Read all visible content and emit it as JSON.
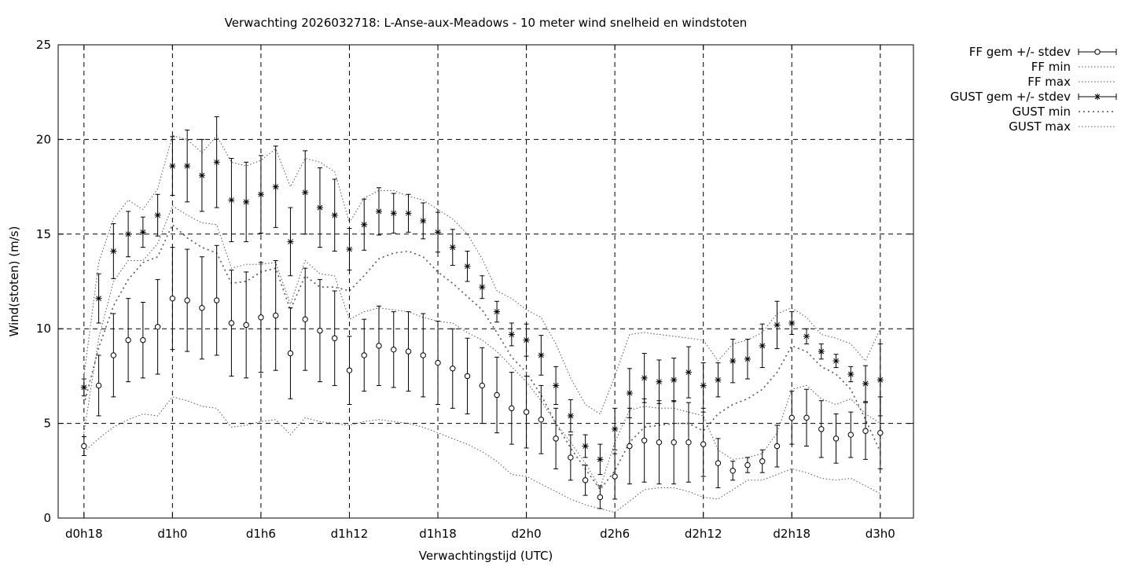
{
  "chart_data": {
    "type": "line",
    "title": "Verwachting 2026032718: L-Anse-aux-Meadows - 10 meter wind snelheid en windstoten",
    "xlabel": "Verwachtingstijd (UTC)",
    "ylabel": "Wind(stoten) (m/s)",
    "x_unit": "hours",
    "xlim": [
      -1.75,
      56.25
    ],
    "ylim": [
      0,
      25
    ],
    "yticks": [
      0,
      5,
      10,
      15,
      20,
      25
    ],
    "xticks": [
      {
        "x": 0,
        "label": "d0h18"
      },
      {
        "x": 6,
        "label": "d1h0"
      },
      {
        "x": 12,
        "label": "d1h6"
      },
      {
        "x": 18,
        "label": "d1h12"
      },
      {
        "x": 24,
        "label": "d1h18"
      },
      {
        "x": 30,
        "label": "d2h0"
      },
      {
        "x": 36,
        "label": "d2h6"
      },
      {
        "x": 42,
        "label": "d2h12"
      },
      {
        "x": 48,
        "label": "d2h18"
      },
      {
        "x": 54,
        "label": "d3h0"
      }
    ],
    "grid": true,
    "legend_position": "outside-right",
    "x": [
      0,
      1,
      2,
      3,
      4,
      5,
      6,
      7,
      8,
      9,
      10,
      11,
      12,
      13,
      14,
      15,
      16,
      17,
      18,
      19,
      20,
      21,
      22,
      23,
      24,
      25,
      26,
      27,
      28,
      29,
      30,
      31,
      32,
      33,
      34,
      35,
      36,
      37,
      38,
      39,
      40,
      41,
      42,
      43,
      44,
      45,
      46,
      47,
      48,
      49,
      50,
      51,
      52,
      53,
      54
    ],
    "series": [
      {
        "name": "FF gem +/- stdev",
        "kind": "errorbars",
        "marker": "circle",
        "values": [
          3.8,
          7.0,
          8.6,
          9.4,
          9.4,
          10.1,
          11.6,
          11.5,
          11.1,
          11.5,
          10.3,
          10.2,
          10.6,
          10.7,
          8.7,
          10.5,
          9.9,
          9.5,
          7.8,
          8.6,
          9.1,
          8.9,
          8.8,
          8.6,
          8.2,
          7.9,
          7.5,
          7.0,
          6.5,
          5.8,
          5.6,
          5.2,
          4.2,
          3.2,
          2.0,
          1.1,
          2.2,
          3.8,
          4.1,
          4.0,
          4.0,
          4.0,
          3.9,
          2.9,
          2.5,
          2.8,
          3.0,
          3.8,
          5.3,
          5.3,
          4.7,
          4.2,
          4.4,
          4.6,
          4.5
        ],
        "err": [
          0.5,
          1.6,
          2.2,
          2.2,
          2.0,
          2.5,
          2.7,
          2.7,
          2.7,
          2.9,
          2.8,
          2.8,
          2.9,
          2.9,
          2.4,
          2.7,
          2.7,
          2.5,
          1.8,
          1.9,
          2.1,
          2.0,
          2.1,
          2.2,
          2.2,
          2.1,
          2.0,
          2.0,
          2.0,
          1.9,
          1.9,
          1.8,
          1.6,
          1.2,
          0.8,
          0.6,
          1.2,
          2.0,
          2.2,
          2.2,
          2.2,
          2.1,
          1.7,
          1.3,
          0.5,
          0.4,
          0.6,
          1.1,
          1.4,
          1.5,
          1.5,
          1.3,
          1.2,
          1.5,
          1.9
        ]
      },
      {
        "name": "FF min",
        "kind": "dotted",
        "values": [
          3.5,
          4.2,
          4.8,
          5.2,
          5.5,
          5.4,
          6.4,
          6.2,
          5.9,
          5.8,
          4.8,
          4.9,
          5.1,
          5.2,
          4.4,
          5.3,
          5.1,
          5.0,
          4.9,
          5.1,
          5.2,
          5.1,
          5.0,
          4.8,
          4.5,
          4.2,
          3.9,
          3.5,
          3.0,
          2.3,
          2.2,
          1.8,
          1.4,
          1.0,
          0.7,
          0.5,
          0.3,
          0.9,
          1.5,
          1.6,
          1.6,
          1.4,
          1.1,
          1.0,
          1.5,
          2.0,
          2.0,
          2.3,
          2.6,
          2.4,
          2.1,
          2.0,
          2.1,
          1.7,
          1.3
        ]
      },
      {
        "name": "FF max",
        "kind": "dotted",
        "values": [
          4.5,
          9.5,
          12.5,
          13.6,
          13.6,
          14.5,
          16.5,
          16.0,
          15.6,
          15.5,
          13.2,
          13.4,
          13.4,
          13.5,
          11.3,
          13.6,
          12.9,
          12.8,
          10.5,
          10.9,
          11.1,
          11.0,
          10.9,
          10.6,
          10.4,
          10.3,
          9.8,
          9.4,
          8.8,
          8.0,
          7.2,
          6.2,
          5.0,
          4.0,
          2.9,
          1.6,
          4.0,
          5.7,
          5.9,
          5.8,
          5.8,
          5.6,
          5.4,
          3.6,
          3.1,
          3.2,
          3.4,
          4.5,
          6.8,
          7.0,
          6.3,
          6.0,
          6.3,
          5.5,
          5.0
        ]
      },
      {
        "name": "GUST gem +/- stdev",
        "kind": "errorbars",
        "marker": "star",
        "values": [
          6.9,
          11.6,
          14.1,
          15.0,
          15.1,
          16.0,
          18.6,
          18.6,
          18.1,
          18.8,
          16.8,
          16.7,
          17.1,
          17.5,
          14.6,
          17.2,
          16.4,
          16.0,
          14.2,
          15.5,
          16.2,
          16.1,
          16.1,
          15.7,
          15.1,
          14.3,
          13.3,
          12.2,
          10.9,
          9.7,
          9.4,
          8.6,
          7.0,
          5.4,
          3.8,
          3.1,
          4.7,
          6.6,
          7.4,
          7.2,
          7.3,
          7.7,
          7.0,
          7.3,
          8.3,
          8.4,
          9.1,
          10.2,
          10.3,
          9.6,
          8.8,
          8.3,
          7.6,
          7.1,
          7.3
        ]
      },
      {
        "name": "GUST min",
        "kind": "dotted-coarse",
        "values": [
          6.0,
          9.0,
          11.2,
          12.6,
          13.5,
          13.8,
          15.5,
          14.8,
          14.3,
          14.0,
          12.4,
          12.5,
          13.0,
          13.2,
          11.0,
          12.8,
          12.2,
          12.2,
          12.0,
          12.8,
          13.7,
          14.0,
          14.1,
          13.8,
          13.0,
          12.4,
          11.7,
          11.0,
          9.8,
          8.5,
          7.7,
          6.5,
          5.0,
          3.7,
          2.6,
          1.5,
          2.5,
          4.0,
          4.8,
          4.9,
          5.0,
          5.0,
          4.6,
          5.5,
          6.0,
          6.3,
          6.8,
          7.7,
          9.1,
          8.8,
          8.0,
          7.6,
          6.8,
          5.2,
          3.5
        ]
      },
      {
        "name": "GUST max",
        "kind": "dotted",
        "values": [
          7.5,
          13.5,
          15.8,
          16.8,
          16.3,
          17.4,
          20.2,
          20.0,
          19.3,
          20.2,
          18.8,
          18.6,
          18.9,
          19.5,
          17.5,
          19.0,
          18.8,
          18.3,
          15.6,
          16.9,
          17.3,
          17.3,
          17.0,
          16.8,
          16.3,
          15.8,
          15.0,
          13.7,
          12.0,
          11.6,
          11.0,
          10.6,
          9.2,
          7.4,
          6.0,
          5.5,
          7.5,
          9.7,
          9.8,
          9.7,
          9.6,
          9.5,
          9.4,
          8.3,
          9.2,
          9.4,
          9.8,
          10.8,
          11.1,
          10.6,
          9.7,
          9.5,
          9.2,
          8.3,
          10.0
        ]
      }
    ]
  }
}
